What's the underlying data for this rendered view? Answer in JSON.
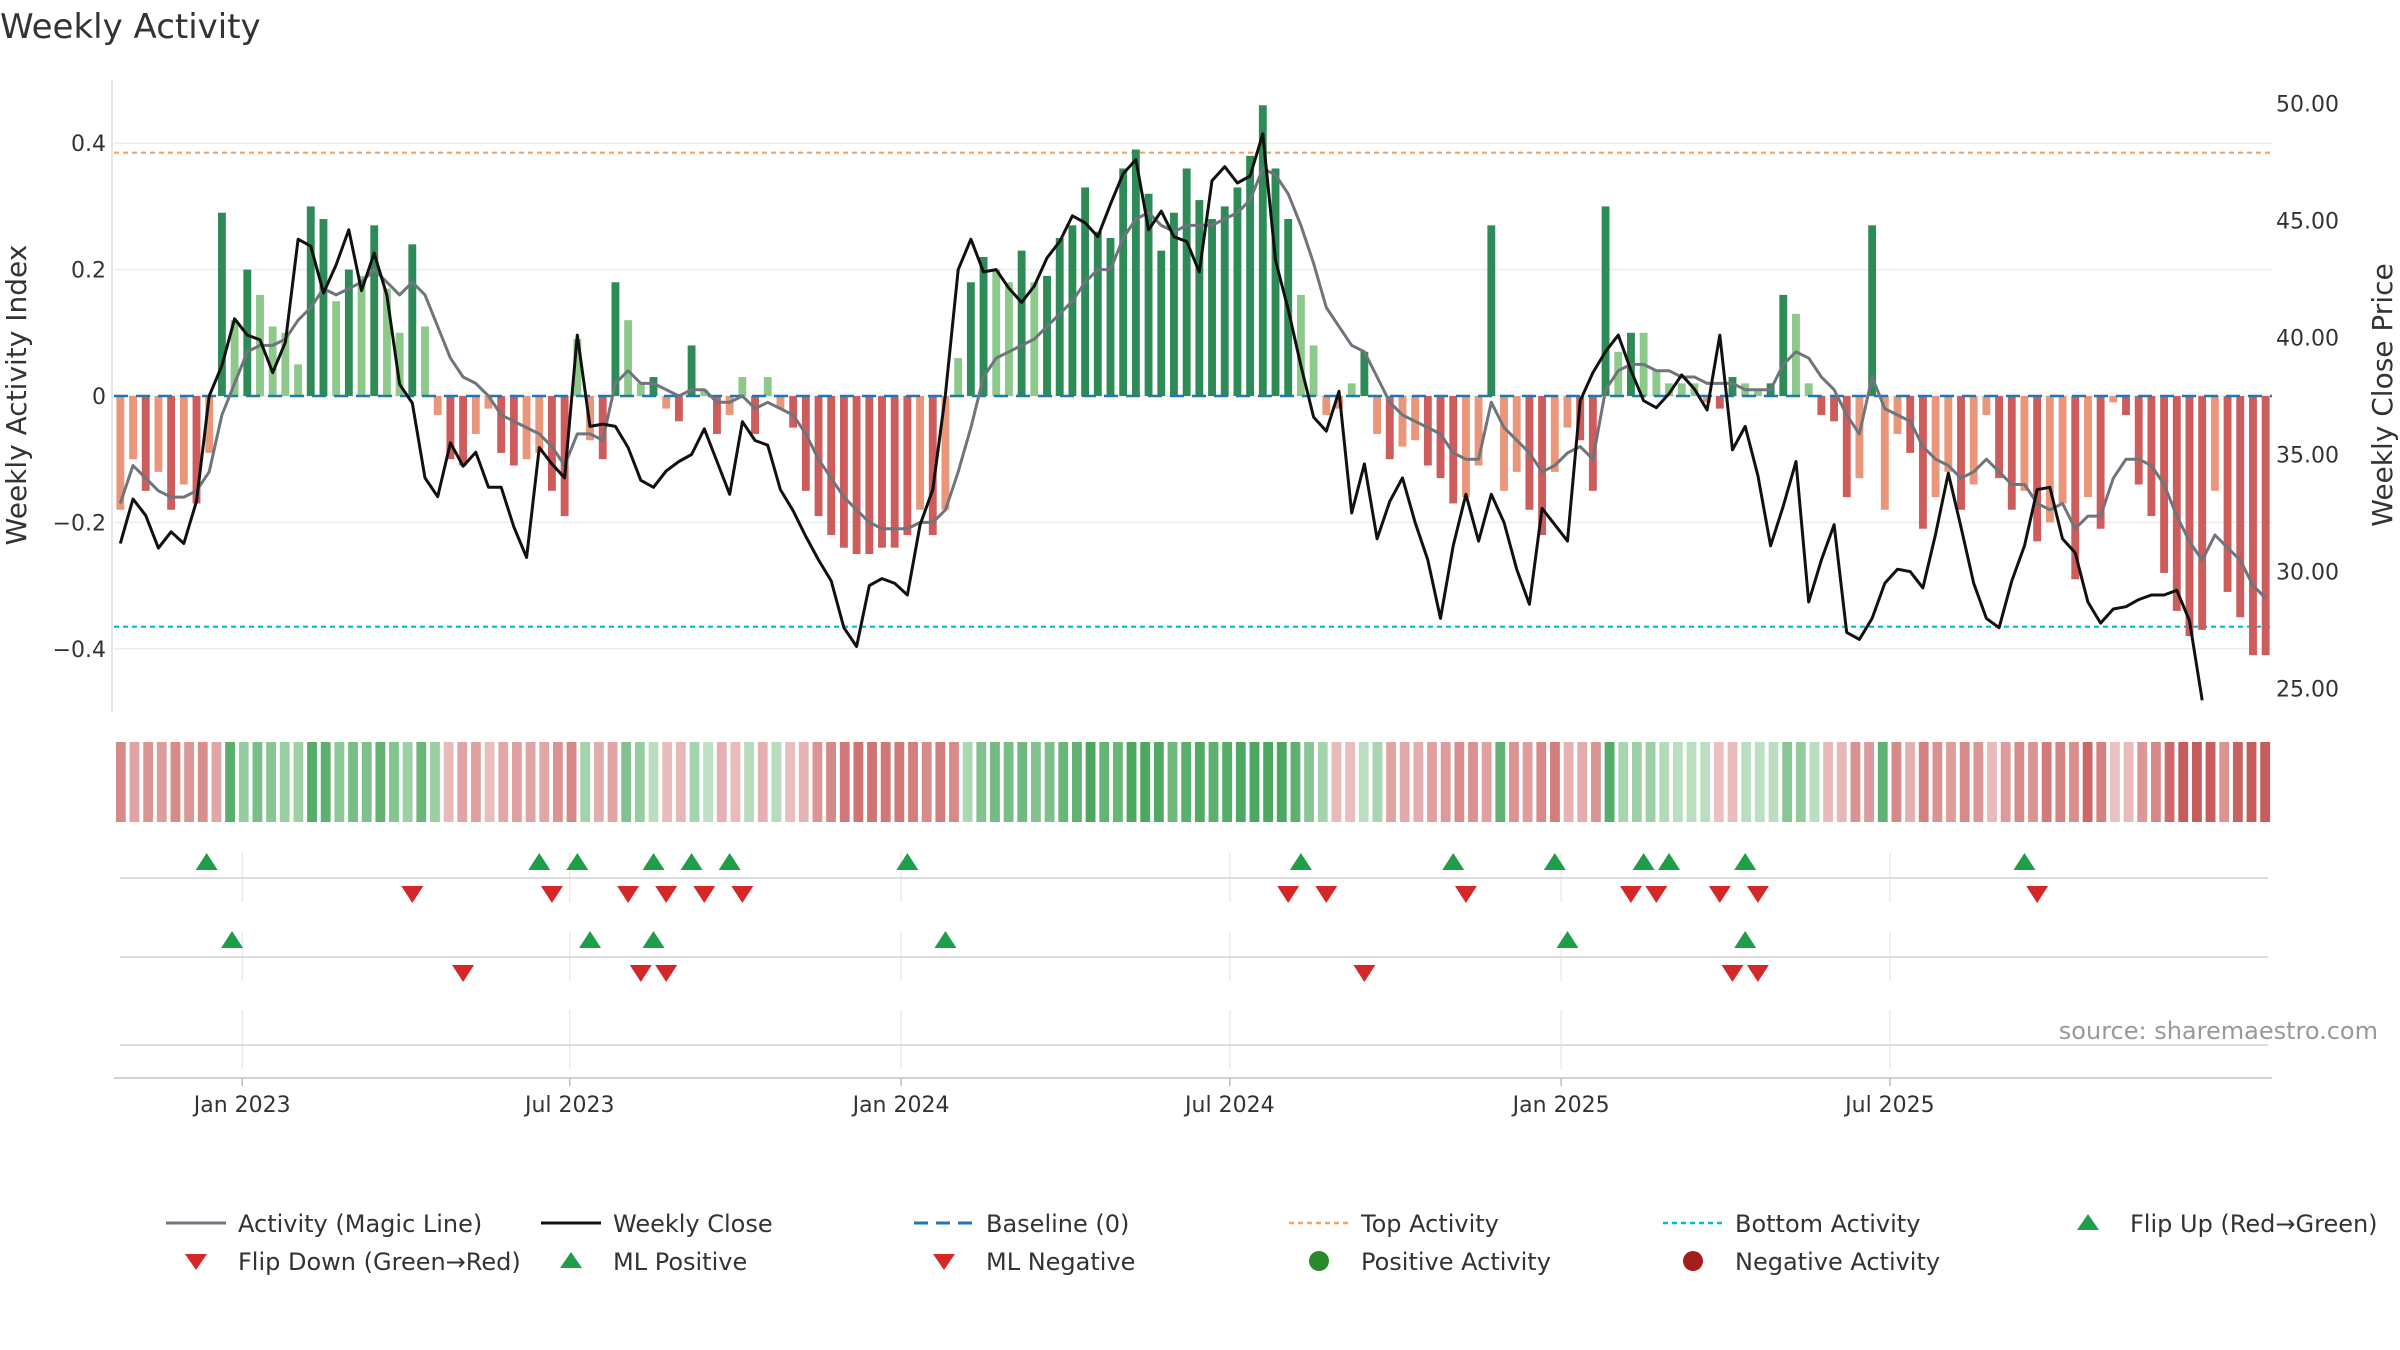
{
  "chart_data": {
    "type": "bar",
    "title": "Weekly Activity",
    "ylabel": "Weekly Activity Index",
    "y2label": "Weekly Close Price",
    "ylim": [
      -0.5,
      0.5
    ],
    "y2lim": [
      24.0,
      51.0
    ],
    "yticks": [
      0.4,
      0.2,
      0,
      -0.2,
      -0.4
    ],
    "ytick_labels": [
      "0.4",
      "0.2",
      "0",
      "−0.2",
      "−0.4"
    ],
    "y2ticks": [
      50,
      45,
      40,
      35,
      30,
      25
    ],
    "y2tick_labels": [
      "50.00",
      "45.00",
      "40.00",
      "35.00",
      "30.00",
      "25.00"
    ],
    "x_start": "2022-10-24",
    "x_end": "2025-10-13",
    "xtick_labels": [
      "Jan 2023",
      "Jul 2023",
      "Jan 2024",
      "Jul 2024",
      "Jan 2025",
      "Jul 2025"
    ],
    "xtick_weeks": [
      10.1,
      35.9,
      62.0,
      87.9,
      114.0,
      139.9
    ],
    "top_activity": 0.385,
    "bottom_activity": -0.365,
    "source": "source: sharemaestro.com",
    "colors": {
      "strong_pos": "#2e8b57",
      "weak_pos": "#8dc98a",
      "strong_neg": "#cd5c5c",
      "weak_neg": "#e9967a",
      "magic_line": "#6e757c",
      "close_line": "#111111",
      "baseline": "#1f77b4",
      "top_line": "#f4a460",
      "bottom_line": "#00bcd4",
      "flip_up": "#1f9e4a",
      "flip_down": "#d62728"
    },
    "activity": [
      -0.18,
      -0.1,
      -0.15,
      -0.12,
      -0.18,
      -0.14,
      -0.17,
      -0.09,
      0.29,
      0.12,
      0.2,
      0.16,
      0.11,
      0.1,
      0.05,
      0.3,
      0.28,
      0.15,
      0.2,
      0.19,
      0.27,
      0.17,
      0.1,
      0.24,
      0.11,
      -0.03,
      -0.1,
      -0.11,
      -0.06,
      -0.02,
      -0.09,
      -0.11,
      -0.1,
      -0.09,
      -0.15,
      -0.19,
      0.09,
      -0.07,
      -0.1,
      0.18,
      0.12,
      0.02,
      0.03,
      -0.02,
      -0.04,
      0.08,
      0.01,
      -0.06,
      -0.03,
      0.03,
      -0.06,
      0.03,
      -0.02,
      -0.05,
      -0.15,
      -0.19,
      -0.22,
      -0.24,
      -0.25,
      -0.25,
      -0.24,
      -0.24,
      -0.22,
      -0.18,
      -0.22,
      -0.18,
      0.06,
      0.18,
      0.22,
      0.2,
      0.18,
      0.23,
      0.18,
      0.19,
      0.25,
      0.27,
      0.33,
      0.26,
      0.25,
      0.36,
      0.39,
      0.32,
      0.23,
      0.29,
      0.36,
      0.31,
      0.28,
      0.3,
      0.33,
      0.38,
      0.46,
      0.36,
      0.28,
      0.16,
      0.08,
      -0.03,
      -0.02,
      0.02,
      0.07,
      -0.06,
      -0.1,
      -0.08,
      -0.07,
      -0.11,
      -0.13,
      -0.17,
      -0.16,
      -0.11,
      0.27,
      -0.15,
      -0.12,
      -0.18,
      -0.22,
      -0.12,
      -0.05,
      -0.07,
      -0.15,
      0.3,
      0.07,
      0.1,
      0.1,
      0.04,
      0.02,
      0.02,
      0.02,
      -0.01,
      -0.02,
      0.03,
      0.02,
      0.01,
      0.02,
      0.16,
      0.13,
      0.02,
      -0.03,
      -0.04,
      -0.16,
      -0.13,
      0.27,
      -0.18,
      -0.06,
      -0.09,
      -0.21,
      -0.16,
      -0.12,
      -0.18,
      -0.14,
      -0.03,
      -0.13,
      -0.18,
      -0.15,
      -0.23,
      -0.2,
      -0.17,
      -0.29,
      -0.16,
      -0.21,
      -0.01,
      -0.03,
      -0.14,
      -0.19,
      -0.28,
      -0.34,
      -0.38,
      -0.37,
      -0.15,
      -0.31,
      -0.35,
      -0.41,
      -0.41
    ],
    "magic_line": [
      -0.17,
      -0.11,
      -0.13,
      -0.15,
      -0.16,
      -0.16,
      -0.15,
      -0.12,
      -0.03,
      0.02,
      0.07,
      0.08,
      0.08,
      0.09,
      0.12,
      0.14,
      0.17,
      0.16,
      0.17,
      0.18,
      0.2,
      0.18,
      0.16,
      0.18,
      0.16,
      0.11,
      0.06,
      0.03,
      0.02,
      -0.0,
      -0.03,
      -0.04,
      -0.05,
      -0.06,
      -0.08,
      -0.11,
      -0.06,
      -0.06,
      -0.07,
      0.02,
      0.04,
      0.02,
      0.02,
      0.01,
      0.0,
      0.01,
      0.01,
      -0.01,
      -0.01,
      -0.0,
      -0.02,
      -0.01,
      -0.02,
      -0.03,
      -0.06,
      -0.1,
      -0.13,
      -0.16,
      -0.18,
      -0.2,
      -0.21,
      -0.21,
      -0.21,
      -0.2,
      -0.2,
      -0.18,
      -0.12,
      -0.05,
      0.03,
      0.06,
      0.07,
      0.08,
      0.09,
      0.11,
      0.13,
      0.15,
      0.18,
      0.2,
      0.2,
      0.25,
      0.28,
      0.29,
      0.27,
      0.26,
      0.27,
      0.27,
      0.27,
      0.28,
      0.29,
      0.31,
      0.36,
      0.35,
      0.32,
      0.27,
      0.21,
      0.14,
      0.11,
      0.08,
      0.07,
      0.03,
      -0.01,
      -0.03,
      -0.04,
      -0.05,
      -0.06,
      -0.09,
      -0.1,
      -0.1,
      -0.01,
      -0.05,
      -0.07,
      -0.09,
      -0.12,
      -0.11,
      -0.09,
      -0.08,
      -0.1,
      0.01,
      0.04,
      0.05,
      0.05,
      0.04,
      0.04,
      0.03,
      0.03,
      0.02,
      0.02,
      0.02,
      0.01,
      0.01,
      0.01,
      0.05,
      0.07,
      0.06,
      0.03,
      0.01,
      -0.03,
      -0.06,
      0.03,
      -0.02,
      -0.03,
      -0.04,
      -0.08,
      -0.1,
      -0.11,
      -0.13,
      -0.12,
      -0.1,
      -0.12,
      -0.14,
      -0.14,
      -0.17,
      -0.18,
      -0.17,
      -0.21,
      -0.19,
      -0.19,
      -0.13,
      -0.1,
      -0.1,
      -0.11,
      -0.14,
      -0.19,
      -0.23,
      -0.26,
      -0.22,
      -0.24,
      -0.26,
      -0.3,
      -0.32
    ],
    "weekly_close": [
      31.2,
      33.1,
      32.4,
      31.0,
      31.7,
      31.2,
      33.0,
      37.5,
      38.8,
      40.8,
      40.1,
      39.9,
      38.5,
      39.8,
      44.2,
      43.9,
      41.9,
      43.1,
      44.6,
      42.0,
      43.6,
      41.8,
      38.0,
      37.2,
      34.0,
      33.2,
      35.5,
      34.5,
      35.1,
      33.6,
      33.6,
      31.9,
      30.6,
      35.3,
      34.6,
      34.0,
      40.1,
      36.2,
      36.3,
      36.2,
      35.3,
      33.9,
      33.6,
      34.3,
      34.7,
      35.0,
      36.1,
      34.7,
      33.3,
      36.4,
      35.6,
      35.4,
      33.5,
      32.6,
      31.5,
      30.5,
      29.6,
      27.6,
      26.8,
      29.4,
      29.7,
      29.5,
      29.0,
      32.0,
      33.5,
      37.6,
      42.9,
      44.2,
      42.8,
      42.9,
      42.1,
      41.5,
      42.2,
      43.4,
      44.1,
      45.2,
      44.9,
      44.3,
      45.7,
      47.0,
      47.6,
      44.6,
      45.4,
      44.3,
      44.1,
      42.8,
      46.7,
      47.3,
      46.6,
      46.9,
      48.7,
      43.3,
      41.2,
      38.8,
      36.6,
      36.0,
      37.7,
      32.5,
      34.6,
      31.4,
      33.0,
      34.0,
      32.1,
      30.5,
      28.0,
      31.1,
      33.3,
      31.3,
      33.3,
      32.1,
      30.1,
      28.6,
      32.7,
      32.0,
      31.3,
      37.3,
      38.5,
      39.4,
      40.1,
      38.6,
      37.3,
      37.0,
      37.6,
      38.4,
      37.8,
      36.9,
      40.1,
      35.2,
      36.2,
      34.1,
      31.1,
      32.8,
      34.7,
      28.7,
      30.5,
      32.0,
      27.4,
      27.1,
      28.0,
      29.5,
      30.1,
      30.0,
      29.3,
      31.6,
      34.2,
      31.9,
      29.5,
      28.0,
      27.6,
      29.6,
      31.1,
      33.5,
      33.6,
      31.4,
      30.8,
      28.7,
      27.8,
      28.4,
      28.5,
      28.8,
      29.0,
      29.0,
      29.2,
      27.9,
      24.5
    ],
    "strip_columns": 158,
    "flip_up_weeks": [
      7.3,
      33.5,
      36.5,
      42.5,
      45.5,
      48.5,
      62.5,
      93.5,
      105.5,
      113.5,
      120.5,
      122.5,
      128.5,
      150.5
    ],
    "flip_down_weeks": [
      23.5,
      34.5,
      40.5,
      43.5,
      46.5,
      49.5,
      92.5,
      95.5,
      106.5,
      119.5,
      121.5,
      126.5,
      129.5,
      151.5
    ],
    "ml_positive_weeks": [
      9.3,
      37.5,
      42.5,
      65.5,
      114.5,
      128.5
    ],
    "ml_negative_weeks": [
      27.5,
      41.5,
      43.5,
      98.5,
      127.5,
      129.5
    ],
    "legend": [
      "Activity (Magic Line)",
      "Weekly Close",
      "Baseline (0)",
      "Top Activity",
      "Bottom Activity",
      "Flip Up (Red→Green)",
      "Flip Down (Green→Red)",
      "ML Positive",
      "ML Negative",
      "Positive Activity",
      "Negative Activity"
    ]
  }
}
